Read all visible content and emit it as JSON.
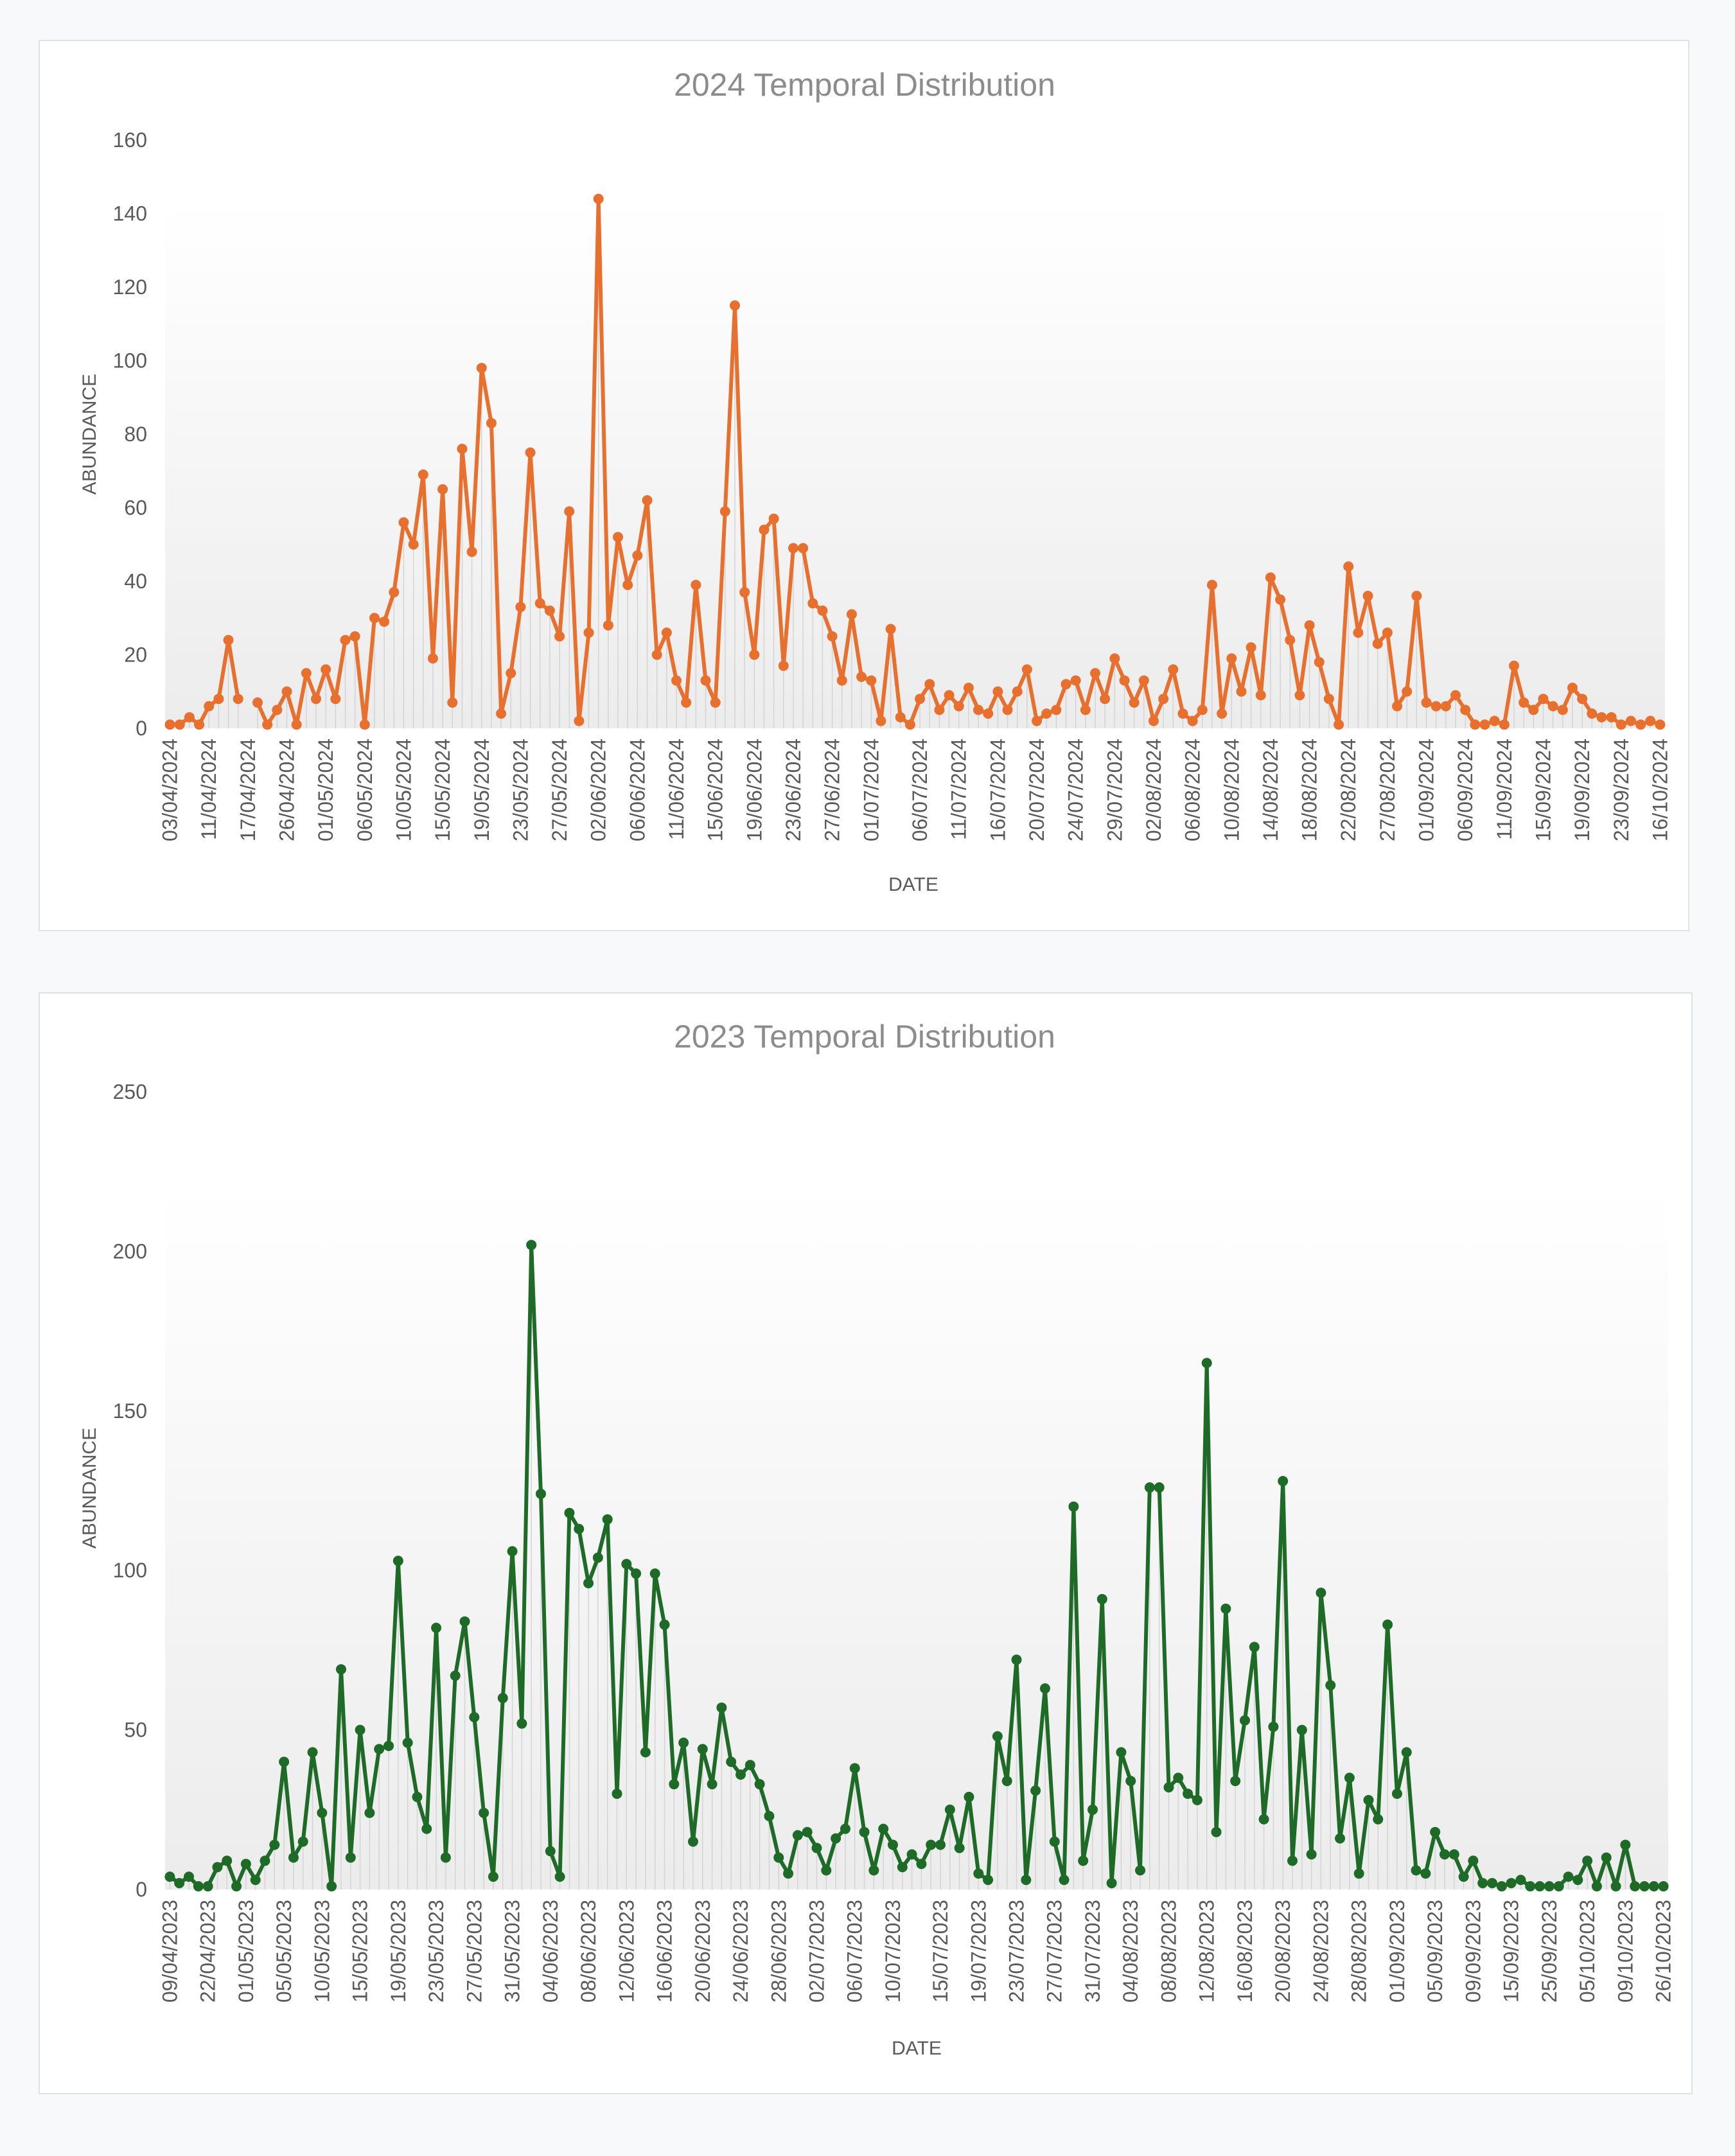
{
  "colors": {
    "series_2024": "#e8702f",
    "series_2023": "#1e6b28",
    "drop": "#d4d4d4",
    "text": "#595959",
    "title": "#8c8c8c"
  },
  "chart_data": [
    {
      "type": "line",
      "title": "2024 Temporal Distribution",
      "xlabel": "DATE",
      "ylabel": "ABUNDANCE",
      "ylim": [
        0,
        160
      ],
      "yticks": [
        0,
        20,
        40,
        60,
        80,
        100,
        120,
        140,
        160
      ],
      "tick_labels": [
        "03/04/2024",
        "11/04/2024",
        "17/04/2024",
        "26/04/2024",
        "01/05/2024",
        "06/05/2024",
        "10/05/2024",
        "15/05/2024",
        "19/05/2024",
        "23/05/2024",
        "27/05/2024",
        "02/06/2024",
        "06/06/2024",
        "11/06/2024",
        "15/06/2024",
        "19/06/2024",
        "23/06/2024",
        "27/06/2024",
        "01/07/2024",
        "06/07/2024",
        "11/07/2024",
        "16/07/2024",
        "20/07/2024",
        "24/07/2024",
        "29/07/2024",
        "02/08/2024",
        "06/08/2024",
        "10/08/2024",
        "14/08/2024",
        "18/08/2024",
        "22/08/2024",
        "27/08/2024",
        "01/09/2024",
        "06/09/2024",
        "11/09/2024",
        "15/09/2024",
        "19/09/2024",
        "23/09/2024",
        "16/10/2024"
      ],
      "grid": false,
      "legend": "none",
      "series": [
        {
          "values": [
            1,
            1,
            3,
            1,
            6,
            8,
            24,
            8,
            null,
            7,
            1,
            5,
            10,
            1,
            15,
            8,
            16,
            8,
            24,
            25,
            1,
            30,
            29,
            37,
            56,
            50,
            69,
            19,
            65,
            7,
            76,
            48,
            98,
            83,
            4,
            15,
            33,
            75,
            34,
            32,
            25,
            59,
            2,
            26,
            144,
            28,
            52,
            39,
            47,
            62,
            20,
            26,
            13,
            7,
            39,
            13,
            7,
            59,
            115,
            37,
            20,
            54,
            57,
            17,
            49,
            49,
            34,
            32,
            25,
            13,
            31,
            14,
            13,
            2,
            27,
            3,
            1,
            8,
            12,
            5,
            9,
            6,
            11,
            5,
            4,
            10,
            5,
            10,
            16,
            2,
            4,
            5,
            12,
            13,
            5,
            15,
            8,
            19,
            13,
            7,
            13,
            2,
            8,
            16,
            4,
            2,
            5,
            39,
            4,
            19,
            10,
            22,
            9,
            41,
            35,
            24,
            9,
            28,
            18,
            8,
            1,
            44,
            26,
            36,
            23,
            26,
            6,
            10,
            36,
            7,
            6,
            6,
            9,
            5,
            1,
            1,
            2,
            1,
            17,
            7,
            5,
            8,
            6,
            5,
            11,
            8,
            4,
            3,
            3,
            1,
            2,
            1,
            2,
            1
          ]
        }
      ]
    },
    {
      "type": "line",
      "title": "2023 Temporal Distribution",
      "xlabel": "DATE",
      "ylabel": "ABUNDANCE",
      "ylim": [
        0,
        250
      ],
      "yticks": [
        0,
        50,
        100,
        150,
        200,
        250
      ],
      "tick_labels": [
        "09/04/2023",
        "22/04/2023",
        "01/05/2023",
        "05/05/2023",
        "10/05/2023",
        "15/05/2023",
        "19/05/2023",
        "23/05/2023",
        "27/05/2023",
        "31/05/2023",
        "04/06/2023",
        "08/06/2023",
        "12/06/2023",
        "16/06/2023",
        "20/06/2023",
        "24/06/2023",
        "28/06/2023",
        "02/07/2023",
        "06/07/2023",
        "10/07/2023",
        "15/07/2023",
        "19/07/2023",
        "23/07/2023",
        "27/07/2023",
        "31/07/2023",
        "04/08/2023",
        "08/08/2023",
        "12/08/2023",
        "16/08/2023",
        "20/08/2023",
        "24/08/2023",
        "28/08/2023",
        "01/09/2023",
        "05/09/2023",
        "09/09/2023",
        "15/09/2023",
        "25/09/2023",
        "05/10/2023",
        "09/10/2023",
        "26/10/2023"
      ],
      "grid": false,
      "legend": "none",
      "series": [
        {
          "values": [
            4,
            2,
            4,
            1,
            1,
            7,
            9,
            1,
            8,
            3,
            9,
            14,
            40,
            10,
            15,
            43,
            24,
            1,
            69,
            10,
            50,
            24,
            44,
            45,
            103,
            46,
            29,
            19,
            82,
            10,
            67,
            84,
            54,
            24,
            4,
            60,
            106,
            52,
            202,
            124,
            12,
            4,
            118,
            113,
            96,
            104,
            116,
            30,
            102,
            99,
            43,
            99,
            83,
            33,
            46,
            15,
            44,
            33,
            57,
            40,
            36,
            39,
            33,
            23,
            10,
            5,
            17,
            18,
            13,
            6,
            16,
            19,
            38,
            18,
            6,
            19,
            14,
            7,
            11,
            8,
            14,
            14,
            25,
            13,
            29,
            5,
            3,
            48,
            34,
            72,
            3,
            31,
            63,
            15,
            3,
            120,
            9,
            25,
            91,
            2,
            43,
            34,
            6,
            126,
            126,
            32,
            35,
            30,
            28,
            165,
            18,
            88,
            34,
            53,
            76,
            22,
            51,
            128,
            9,
            50,
            11,
            93,
            64,
            16,
            35,
            5,
            28,
            22,
            83,
            30,
            43,
            6,
            5,
            18,
            11,
            11,
            4,
            9,
            2,
            2,
            1,
            2,
            3,
            1,
            1,
            1,
            1,
            4,
            3,
            9,
            1,
            10,
            1,
            14,
            1,
            1,
            1,
            1
          ]
        }
      ]
    }
  ]
}
